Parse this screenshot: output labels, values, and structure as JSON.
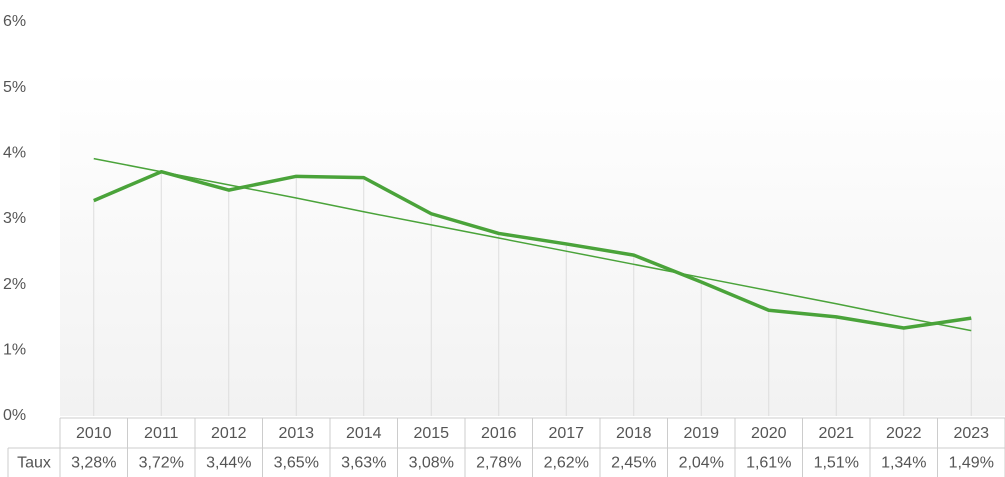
{
  "chart_data": {
    "type": "line",
    "categories": [
      "2010",
      "2011",
      "2012",
      "2013",
      "2014",
      "2015",
      "2016",
      "2017",
      "2018",
      "2019",
      "2020",
      "2021",
      "2022",
      "2023"
    ],
    "series": [
      {
        "name": "Taux",
        "color": "#4aa33a",
        "values": [
          3.28,
          3.72,
          3.44,
          3.65,
          3.63,
          3.08,
          2.78,
          2.62,
          2.45,
          2.04,
          1.61,
          1.51,
          1.34,
          1.49
        ],
        "value_labels": [
          "3,28%",
          "3,72%",
          "3,44%",
          "3,65%",
          "3,63%",
          "3,08%",
          "2,78%",
          "2,62%",
          "2,45%",
          "2,04%",
          "1,61%",
          "1,51%",
          "1,34%",
          "1,49%"
        ]
      },
      {
        "color": "#4aa33a",
        "values": [
          3.92,
          3.72,
          3.52,
          3.32,
          3.11,
          2.91,
          2.71,
          2.51,
          2.31,
          2.11,
          1.91,
          1.71,
          1.5,
          1.3
        ]
      }
    ],
    "ylim": [
      0,
      6
    ],
    "yticks": [
      {
        "value": 0,
        "label": "0%"
      },
      {
        "value": 1,
        "label": "1%"
      },
      {
        "value": 2,
        "label": "2%"
      },
      {
        "value": 3,
        "label": "3%"
      },
      {
        "value": 4,
        "label": "4%"
      },
      {
        "value": 5,
        "label": "5%"
      },
      {
        "value": 6,
        "label": "6%"
      }
    ]
  }
}
